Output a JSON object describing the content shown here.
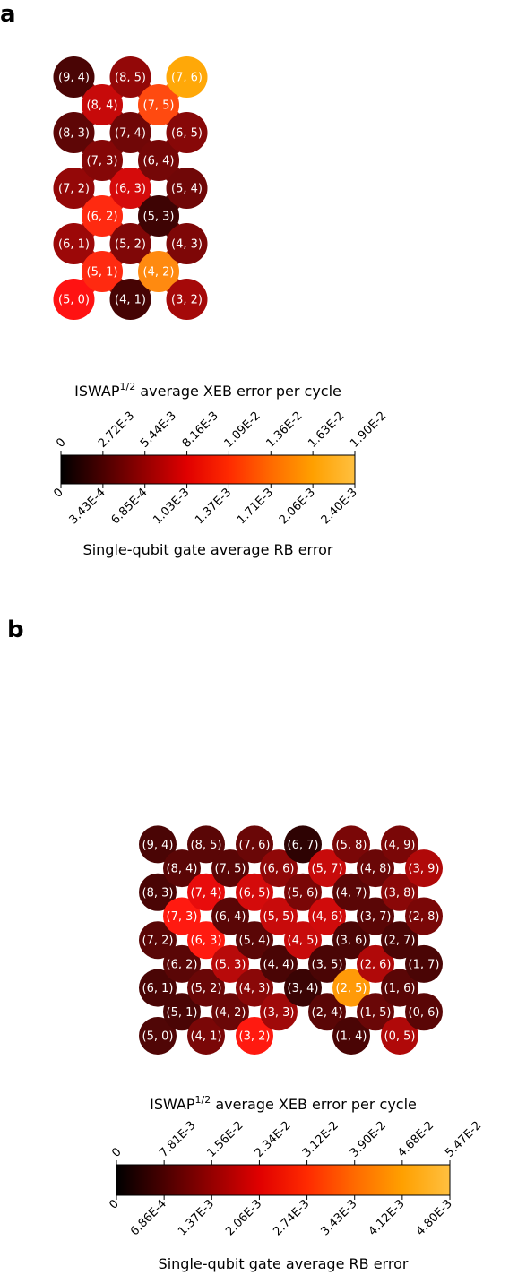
{
  "panels": [
    {
      "letter": "a",
      "qubits": [
        {
          "label": "(9, 4)",
          "color": "#4a0505"
        },
        {
          "label": "(8, 3)",
          "color": "#5e0606"
        },
        {
          "label": "(8, 4)",
          "color": "#c70a0a"
        },
        {
          "label": "(8, 5)",
          "color": "#930808"
        },
        {
          "label": "(7, 2)",
          "color": "#940808"
        },
        {
          "label": "(7, 3)",
          "color": "#850707"
        },
        {
          "label": "(7, 4)",
          "color": "#700707"
        },
        {
          "label": "(7, 5)",
          "color": "#ff4a10"
        },
        {
          "label": "(7, 6)",
          "color": "#ffa808"
        },
        {
          "label": "(6, 1)",
          "color": "#9c0808"
        },
        {
          "label": "(6, 2)",
          "color": "#ff2a10"
        },
        {
          "label": "(6, 3)",
          "color": "#d50b0b"
        },
        {
          "label": "(6, 4)",
          "color": "#750707"
        },
        {
          "label": "(6, 5)",
          "color": "#870808"
        },
        {
          "label": "(5, 0)",
          "color": "#ff1212"
        },
        {
          "label": "(5, 1)",
          "color": "#ff2a10"
        },
        {
          "label": "(5, 2)",
          "color": "#800707"
        },
        {
          "label": "(5, 3)",
          "color": "#3e0404"
        },
        {
          "label": "(5, 4)",
          "color": "#700707"
        },
        {
          "label": "(4, 1)",
          "color": "#460404"
        },
        {
          "label": "(4, 2)",
          "color": "#ff8a10"
        },
        {
          "label": "(4, 3)",
          "color": "#7e0707"
        },
        {
          "label": "(3, 2)",
          "color": "#a50909"
        }
      ],
      "colorbar": {
        "title_main": "ISWAP",
        "title_sup": "1/2",
        "title_rest": " average XEB error per cycle",
        "top_ticks": [
          "0",
          "2.72E-3",
          "5.44E-3",
          "8.16E-3",
          "1.09E-2",
          "1.36E-2",
          "1.63E-2",
          "1.90E-2"
        ],
        "bottom_ticks": [
          "0",
          "3.43E-4",
          "6.85E-4",
          "1.03E-3",
          "1.37E-3",
          "1.71E-3",
          "2.06E-3",
          "2.40E-3"
        ],
        "bottom_label": "Single-qubit gate average RB error",
        "colors": [
          "#000000",
          "#4a0000",
          "#950000",
          "#e00000",
          "#ff2a00",
          "#ff6a00",
          "#ffa000",
          "#ffc040"
        ]
      }
    },
    {
      "letter": "b",
      "qubits": [
        {
          "label": "(9, 4)",
          "color": "#4a0505"
        },
        {
          "label": "(8, 3)",
          "color": "#4a0505"
        },
        {
          "label": "(8, 4)",
          "color": "#5a0606"
        },
        {
          "label": "(8, 5)",
          "color": "#5a0606"
        },
        {
          "label": "(7, 2)",
          "color": "#5a0606"
        },
        {
          "label": "(7, 3)",
          "color": "#ff1a10"
        },
        {
          "label": "(7, 4)",
          "color": "#e80c0c"
        },
        {
          "label": "(7, 5)",
          "color": "#5a0606"
        },
        {
          "label": "(7, 6)",
          "color": "#6a0707"
        },
        {
          "label": "(6, 1)",
          "color": "#4a0505"
        },
        {
          "label": "(6, 2)",
          "color": "#5a0606"
        },
        {
          "label": "(6, 3)",
          "color": "#ff1a10"
        },
        {
          "label": "(6, 4)",
          "color": "#5a0606"
        },
        {
          "label": "(6, 5)",
          "color": "#d40b0b"
        },
        {
          "label": "(6, 6)",
          "color": "#900808"
        },
        {
          "label": "(6, 7)",
          "color": "#2e0303"
        },
        {
          "label": "(5, 0)",
          "color": "#500606"
        },
        {
          "label": "(5, 1)",
          "color": "#4a0505"
        },
        {
          "label": "(5, 2)",
          "color": "#6a0707"
        },
        {
          "label": "(5, 3)",
          "color": "#b80a0a"
        },
        {
          "label": "(5, 4)",
          "color": "#5a0606"
        },
        {
          "label": "(5, 5)",
          "color": "#c80b0b"
        },
        {
          "label": "(5, 6)",
          "color": "#7a0707"
        },
        {
          "label": "(5, 7)",
          "color": "#c80b0b"
        },
        {
          "label": "(5, 8)",
          "color": "#7a0707"
        },
        {
          "label": "(4, 1)",
          "color": "#7a0707"
        },
        {
          "label": "(4, 2)",
          "color": "#6a0707"
        },
        {
          "label": "(4, 3)",
          "color": "#8a0808"
        },
        {
          "label": "(4, 4)",
          "color": "#4a0505"
        },
        {
          "label": "(4, 5)",
          "color": "#c80b0b"
        },
        {
          "label": "(4, 6)",
          "color": "#d00b0b"
        },
        {
          "label": "(4, 7)",
          "color": "#5a0606"
        },
        {
          "label": "(4, 8)",
          "color": "#6a0707"
        },
        {
          "label": "(4, 9)",
          "color": "#7a0707"
        },
        {
          "label": "(3, 2)",
          "color": "#ff1a10"
        },
        {
          "label": "(3, 3)",
          "color": "#a00909"
        },
        {
          "label": "(3, 4)",
          "color": "#3a0404"
        },
        {
          "label": "(3, 5)",
          "color": "#4a0505"
        },
        {
          "label": "(3, 6)",
          "color": "#4a0505"
        },
        {
          "label": "(3, 7)",
          "color": "#5a0606"
        },
        {
          "label": "(3, 8)",
          "color": "#8a0808"
        },
        {
          "label": "(3, 9)",
          "color": "#b00909"
        },
        {
          "label": "(2, 4)",
          "color": "#5a0606"
        },
        {
          "label": "(2, 5)",
          "color": "#ff9a08"
        },
        {
          "label": "(2, 6)",
          "color": "#b00909"
        },
        {
          "label": "(2, 7)",
          "color": "#4a0505"
        },
        {
          "label": "(2, 8)",
          "color": "#7a0707"
        },
        {
          "label": "(1, 4)",
          "color": "#4a0505"
        },
        {
          "label": "(1, 5)",
          "color": "#6a0707"
        },
        {
          "label": "(1, 6)",
          "color": "#5a0606"
        },
        {
          "label": "(1, 7)",
          "color": "#4a0505"
        },
        {
          "label": "(0, 5)",
          "color": "#b00909"
        },
        {
          "label": "(0, 6)",
          "color": "#5a0606"
        }
      ],
      "colorbar": {
        "title_main": "ISWAP",
        "title_sup": "1/2",
        "title_rest": " average XEB error per cycle",
        "top_ticks": [
          "0",
          "7.81E-3",
          "1.56E-2",
          "2.34E-2",
          "3.12E-2",
          "3.90E-2",
          "4.68E-2",
          "5.47E-2"
        ],
        "bottom_ticks": [
          "0",
          "6.86E-4",
          "1.37E-3",
          "2.06E-3",
          "2.74E-3",
          "3.43E-3",
          "4.12E-3",
          "4.80E-3"
        ],
        "bottom_label": "Single-qubit gate average RB error",
        "colors": [
          "#000000",
          "#4a0000",
          "#950000",
          "#e00000",
          "#ff2a00",
          "#ff6a00",
          "#ffa000",
          "#ffc040"
        ]
      }
    }
  ]
}
